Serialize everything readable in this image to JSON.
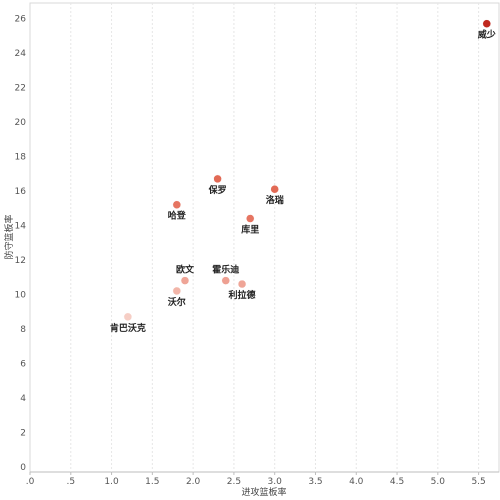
{
  "chart_data": {
    "type": "scatter",
    "title": "",
    "xlabel": "进攻篮板率",
    "ylabel": "防守篮板率",
    "xlim": [
      0,
      5.75
    ],
    "ylim": [
      -0.3,
      26.9
    ],
    "x_ticks": [
      0,
      0.5,
      1.0,
      1.5,
      2.0,
      2.5,
      3.0,
      3.5,
      4.0,
      4.5,
      5.0,
      5.5
    ],
    "x_tick_labels": [
      ".0",
      ".5",
      "1.0",
      "1.5",
      "2.0",
      "2.5",
      "3.0",
      "3.5",
      "4.0",
      "4.5",
      "5.0",
      "5.5"
    ],
    "y_ticks": [
      0,
      2,
      4,
      6,
      8,
      10,
      12,
      14,
      16,
      18,
      20,
      22,
      24,
      26
    ],
    "y_tick_labels": [
      "0",
      "2",
      "4",
      "6",
      "8",
      "10",
      "12",
      "14",
      "16",
      "18",
      "20",
      "22",
      "24",
      "26"
    ],
    "grid": "vertical",
    "points": [
      {
        "label": "威少",
        "x": 5.6,
        "y": 25.7,
        "color": "#c0281e"
      },
      {
        "label": "保罗",
        "x": 2.3,
        "y": 16.7,
        "color": "#e26a55"
      },
      {
        "label": "洛瑞",
        "x": 3.0,
        "y": 16.1,
        "color": "#e26a55"
      },
      {
        "label": "哈登",
        "x": 1.8,
        "y": 15.2,
        "color": "#e67562"
      },
      {
        "label": "库里",
        "x": 2.7,
        "y": 14.4,
        "color": "#e67562"
      },
      {
        "label": "霍乐迪",
        "x": 2.4,
        "y": 10.8,
        "color": "#eea092"
      },
      {
        "label": "欧文",
        "x": 1.9,
        "y": 10.8,
        "color": "#efa597"
      },
      {
        "label": "利拉德",
        "x": 2.6,
        "y": 10.6,
        "color": "#efa597"
      },
      {
        "label": "沃尔",
        "x": 1.8,
        "y": 10.2,
        "color": "#f2b5a8"
      },
      {
        "label": "肯巴沃克",
        "x": 1.2,
        "y": 8.7,
        "color": "#f6cec5"
      }
    ]
  }
}
